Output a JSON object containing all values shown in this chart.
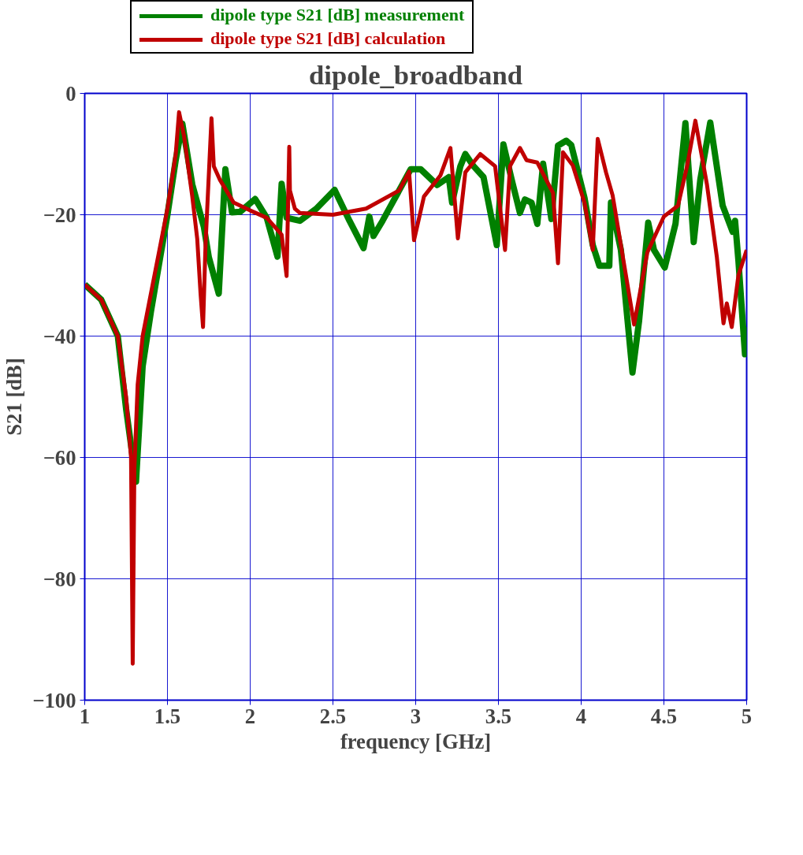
{
  "chart_data": {
    "type": "line",
    "title": "dipole_broadband",
    "xlabel": "frequency [GHz]",
    "ylabel": "S21 [dB]",
    "xlim": [
      1,
      5
    ],
    "ylim": [
      -100,
      0
    ],
    "xticks": [
      1,
      1.5,
      2,
      2.5,
      3,
      3.5,
      4,
      4.5,
      5
    ],
    "yticks": [
      -100,
      -80,
      -60,
      -40,
      -20,
      0
    ],
    "grid": true,
    "legend": "top left",
    "line_style": "solid",
    "marker": "none",
    "series": [
      {
        "name": "dipole type S21 [dB] measurement",
        "color": "#008000",
        "x": [
          1.0,
          1.1,
          1.2,
          1.25,
          1.31,
          1.35,
          1.4,
          1.45,
          1.5,
          1.55,
          1.59,
          1.65,
          1.72,
          1.75,
          1.81,
          1.85,
          1.89,
          1.94,
          2.03,
          2.1,
          2.165,
          2.19,
          2.22,
          2.3,
          2.4,
          2.51,
          2.6,
          2.685,
          2.72,
          2.745,
          2.8,
          2.9,
          2.97,
          3.03,
          3.13,
          3.2,
          3.22,
          3.27,
          3.3,
          3.35,
          3.41,
          3.49,
          3.53,
          3.58,
          3.63,
          3.66,
          3.7,
          3.735,
          3.77,
          3.82,
          3.86,
          3.91,
          3.94,
          4.02,
          4.07,
          4.11,
          4.17,
          4.18,
          4.24,
          4.31,
          4.35,
          4.405,
          4.44,
          4.505,
          4.57,
          4.63,
          4.68,
          4.72,
          4.78,
          4.855,
          4.915,
          4.93,
          4.95,
          4.99,
          5.0
        ],
        "values": [
          -31.5,
          -34,
          -40,
          -52,
          -64,
          -45,
          -36,
          -28,
          -20,
          -11,
          -5,
          -15,
          -22,
          -27,
          -33,
          -12.5,
          -19.6,
          -19.5,
          -17.4,
          -20.5,
          -26.9,
          -14.9,
          -20.5,
          -21,
          -19,
          -15.9,
          -21,
          -25.5,
          -20.3,
          -23.5,
          -21,
          -16,
          -12.5,
          -12.5,
          -15.1,
          -13.8,
          -18,
          -12,
          -10,
          -12,
          -13.8,
          -25,
          -8.4,
          -14.2,
          -19.7,
          -17.5,
          -18,
          -21.5,
          -11.6,
          -20.7,
          -8.6,
          -7.8,
          -8.5,
          -17.2,
          -25,
          -28.4,
          -28.4,
          -18,
          -25.8,
          -46,
          -37.5,
          -21.3,
          -25.8,
          -28.7,
          -21.5,
          -4.9,
          -24.5,
          -14.2,
          -4.8,
          -18.5,
          -22.8,
          -21,
          -27.5,
          -43,
          -38.5
        ]
      },
      {
        "name": "dipole type S21 [dB] calculation",
        "color": "#c00000",
        "x": [
          1.0,
          1.1,
          1.2,
          1.25,
          1.28,
          1.29,
          1.3,
          1.32,
          1.35,
          1.4,
          1.45,
          1.5,
          1.55,
          1.57,
          1.6,
          1.65,
          1.68,
          1.7,
          1.715,
          1.73,
          1.766,
          1.78,
          1.816,
          1.9,
          2.0,
          2.1,
          2.19,
          2.22,
          2.236,
          2.24,
          2.27,
          2.3,
          2.5,
          2.7,
          2.9,
          2.96,
          2.99,
          3.05,
          3.15,
          3.21,
          3.255,
          3.3,
          3.39,
          3.48,
          3.54,
          3.57,
          3.63,
          3.67,
          3.735,
          3.83,
          3.86,
          3.89,
          3.95,
          4.02,
          4.07,
          4.1,
          4.15,
          4.19,
          4.32,
          4.4,
          4.5,
          4.585,
          4.64,
          4.69,
          4.76,
          4.82,
          4.86,
          4.88,
          4.91,
          4.95,
          5.0
        ],
        "values": [
          -31.5,
          -34,
          -40,
          -50,
          -60,
          -94,
          -62,
          -48,
          -40,
          -33,
          -26,
          -19,
          -10,
          -3.1,
          -7,
          -17,
          -24,
          -33,
          -38.5,
          -25,
          -4.1,
          -12,
          -14.2,
          -18,
          -19.3,
          -20.5,
          -23.3,
          -30.1,
          -8.8,
          -16,
          -19,
          -19.7,
          -20,
          -19,
          -16,
          -12.9,
          -24.2,
          -17,
          -13.5,
          -9,
          -23.9,
          -13,
          -10,
          -12,
          -25.8,
          -12,
          -9,
          -11,
          -11.4,
          -16.4,
          -28,
          -9.7,
          -11.9,
          -18,
          -25.8,
          -7.5,
          -13,
          -16.8,
          -38.1,
          -26.2,
          -20.3,
          -18.5,
          -12,
          -4.5,
          -15,
          -27,
          -37.9,
          -34.6,
          -38.5,
          -30,
          -25.8
        ]
      }
    ]
  }
}
